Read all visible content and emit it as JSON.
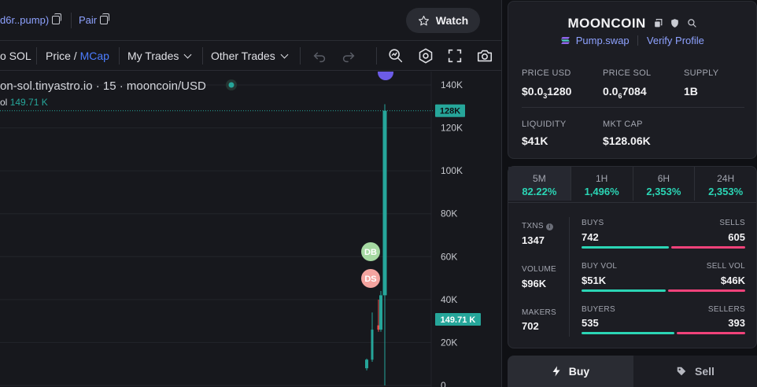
{
  "header": {
    "address_label": "d6r..pump)",
    "pair_label": "Pair",
    "watch_label": "Watch"
  },
  "toolbar": {
    "sol_label": "o SOL",
    "price_label": "Price",
    "slash": "/",
    "mcap_label": "MCap",
    "my_trades_label": "My Trades",
    "other_trades_label": "Other Trades"
  },
  "chart": {
    "title_text": "on-sol.tinyastro.io · 15 · mooncoin/USD",
    "vol_prefix": "ol",
    "vol_value": "149.71 K",
    "price_tag": "128K",
    "volume_tag": "149.71 K",
    "marker_db": "DB",
    "marker_ds": "DS",
    "axis_ticks": [
      "140K",
      "120K",
      "100K",
      "80K",
      "60K",
      "40K",
      "20K",
      "0"
    ]
  },
  "chart_data": {
    "type": "candlestick",
    "ylabel": "",
    "ylim": [
      0,
      150000
    ],
    "y_ticks": [
      0,
      20000,
      40000,
      60000,
      80000,
      100000,
      120000,
      140000
    ],
    "last_price": 128000,
    "volume": "149.71 K",
    "candles": [
      {
        "open": 8000,
        "close": 12000,
        "low": 7000,
        "high": 12500,
        "dir": "up"
      },
      {
        "open": 12000,
        "close": 26000,
        "low": 11000,
        "high": 34000,
        "dir": "up"
      },
      {
        "open": 28000,
        "close": 26000,
        "low": 25000,
        "high": 40000,
        "dir": "down"
      },
      {
        "open": 26000,
        "close": 42000,
        "low": 25000,
        "high": 44000,
        "dir": "up"
      },
      {
        "open": 42000,
        "close": 128000,
        "low": 0,
        "high": 131000,
        "dir": "up"
      }
    ],
    "colors": {
      "up": "#26a69a",
      "down": "#ef5350"
    }
  },
  "token": {
    "name": "MOONCOIN",
    "dex": "Pump.swap",
    "verify": "Verify Profile",
    "price_usd_label": "PRICE USD",
    "price_usd_main": "$0.0",
    "price_usd_sub": "3",
    "price_usd_rest": "1280",
    "price_sol_label": "PRICE SOL",
    "price_sol_main": "0.0",
    "price_sol_sub": "6",
    "price_sol_rest": "7084",
    "supply_label": "SUPPLY",
    "supply_value": "1B",
    "liquidity_label": "LIQUIDITY",
    "liquidity_value": "$41K",
    "mktcap_label": "MKT CAP",
    "mktcap_value": "$128.06K"
  },
  "timeframes": [
    {
      "label": "5M",
      "pct": "82.22%"
    },
    {
      "label": "1H",
      "pct": "1,496%"
    },
    {
      "label": "6H",
      "pct": "2,353%"
    },
    {
      "label": "24H",
      "pct": "2,353%"
    }
  ],
  "stats": {
    "txns_label": "TXNS",
    "txns_value": "1347",
    "volume_label": "VOLUME",
    "volume_value": "$96K",
    "makers_label": "MAKERS",
    "makers_value": "702",
    "buys_label": "BUYS",
    "buys_value": "742",
    "sells_label": "SELLS",
    "sells_value": "605",
    "buyvol_label": "BUY VOL",
    "buyvol_value": "$51K",
    "sellvol_label": "SELL VOL",
    "sellvol_value": "$46K",
    "buyers_label": "BUYERS",
    "buyers_value": "535",
    "sellers_label": "SELLERS",
    "sellers_value": "393",
    "buys_share": 0.55,
    "buyvol_share": 0.53,
    "buyers_share": 0.58,
    "colors": {
      "buy": "#2bd5b5",
      "sell": "#f0427a"
    }
  },
  "trade": {
    "buy_label": "Buy",
    "sell_label": "Sell"
  }
}
